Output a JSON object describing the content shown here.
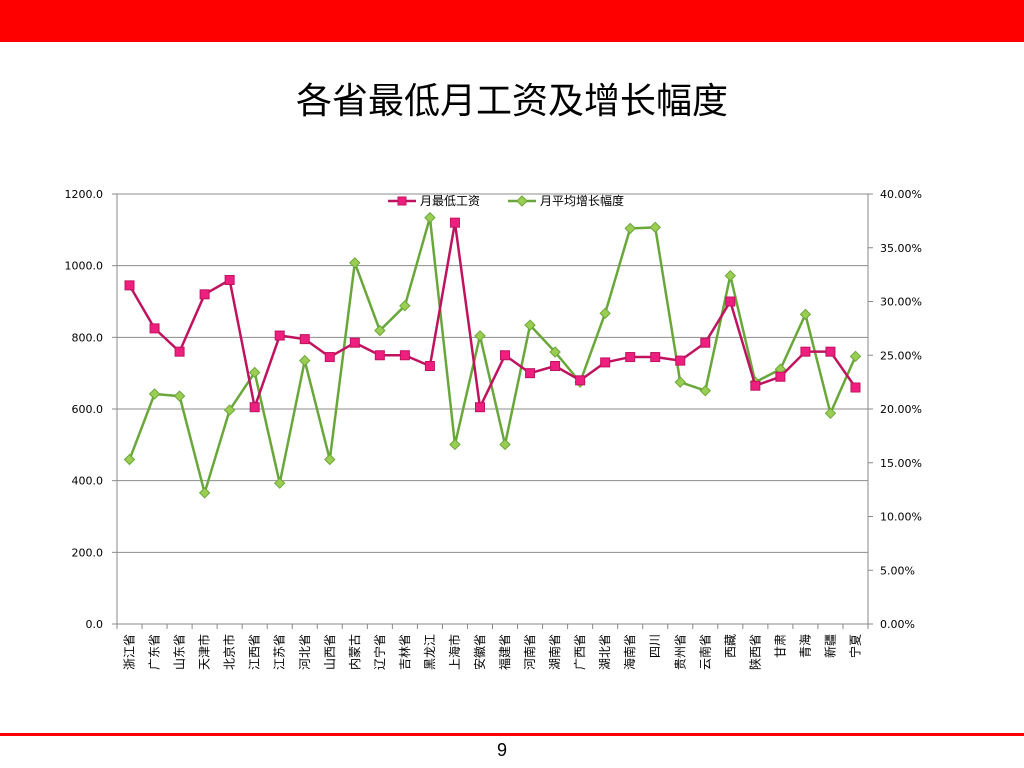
{
  "slide": {
    "title": "各省最低月工资及增长幅度",
    "page_number": "9"
  },
  "colors": {
    "top_bar": "#fe0000",
    "bottom_line": "#fe0000",
    "wage_series": "#c0135f",
    "wage_marker": "#ee1f7f",
    "growth_series": "#6aa73a",
    "growth_marker": "#9bcd52",
    "gridline": "#8c8c8c"
  },
  "chart_data": {
    "type": "line",
    "title": "",
    "legend_position": "top",
    "grid": true,
    "categories": [
      "浙江省",
      "广东省",
      "山东省",
      "天津市",
      "北京市",
      "江西省",
      "江苏省",
      "河北省",
      "山西省",
      "内蒙古",
      "辽宁省",
      "吉林省",
      "黑龙江",
      "上海市",
      "安徽省",
      "福建省",
      "河南省",
      "湖南省",
      "广西省",
      "湖北省",
      "海南省",
      "四川",
      "贵州省",
      "云南省",
      "西藏",
      "陕西省",
      "甘肃",
      "青海",
      "新疆",
      "宁夏"
    ],
    "y_left": {
      "min": 0,
      "max": 1200,
      "step": 200,
      "tick_labels": [
        "0.0",
        "200.0",
        "400.0",
        "600.0",
        "800.0",
        "1000.0",
        "1200.0"
      ]
    },
    "y_right": {
      "min": 0,
      "max": 40,
      "step": 5,
      "tick_labels": [
        "0.00%",
        "5.00%",
        "10.00%",
        "15.00%",
        "20.00%",
        "25.00%",
        "30.00%",
        "35.00%",
        "40.00%"
      ]
    },
    "series": [
      {
        "name": "月最低工资",
        "axis": "left",
        "marker": "square",
        "values": [
          945,
          825,
          760,
          920,
          960,
          605,
          805,
          795,
          745,
          785,
          750,
          750,
          720,
          1120,
          605,
          750,
          700,
          720,
          680,
          730,
          745,
          745,
          735,
          785,
          900,
          665,
          690,
          760,
          760,
          660
        ]
      },
      {
        "name": "月平均增长幅度",
        "axis": "right",
        "marker": "diamond",
        "values": [
          15.3,
          21.4,
          21.2,
          12.2,
          19.9,
          23.4,
          13.1,
          24.5,
          15.3,
          33.6,
          27.3,
          29.6,
          37.8,
          16.7,
          26.8,
          16.7,
          27.8,
          25.3,
          22.5,
          28.9,
          36.8,
          36.9,
          22.5,
          21.7,
          32.4,
          22.5,
          23.7,
          28.8,
          19.6,
          24.9
        ]
      }
    ]
  }
}
